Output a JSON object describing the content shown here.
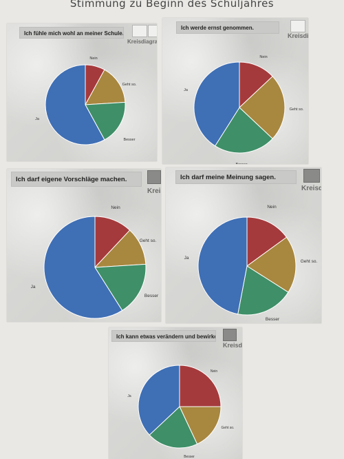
{
  "poster": {
    "title": "Stimmung zu Beginn des Schuljahres"
  },
  "widgets": {
    "diagram_label": "Kreisdiagra"
  },
  "colors": {
    "Nein": "#a53a3c",
    "Geht so.": "#a8873f",
    "Besser": "#3f8f68",
    "Ja": "#3f6fb5"
  },
  "chart_data": [
    {
      "type": "pie",
      "title": "Ich fühle mich wohl an meiner Schule.",
      "categories": [
        "Nein",
        "Geht so.",
        "Besser",
        "Ja"
      ],
      "values": [
        8,
        16,
        18,
        58
      ]
    },
    {
      "type": "pie",
      "title": "Ich werde ernst genommen.",
      "categories": [
        "Nein",
        "Geht so.",
        "Besser",
        "Ja"
      ],
      "values": [
        13,
        24,
        22,
        41
      ]
    },
    {
      "type": "pie",
      "title": "Ich darf eigene Vorschläge machen.",
      "categories": [
        "Nein",
        "Geht so.",
        "Besser",
        "Ja"
      ],
      "values": [
        12,
        12,
        17,
        59
      ]
    },
    {
      "type": "pie",
      "title": "Ich darf meine Meinung sagen.",
      "categories": [
        "Nein",
        "Geht so.",
        "Besser",
        "Ja"
      ],
      "values": [
        15,
        19,
        19,
        47
      ]
    },
    {
      "type": "pie",
      "title": "Ich kann etwas verändern und bewirken.",
      "categories": [
        "Nein",
        "Geht so.",
        "Besser",
        "Ja"
      ],
      "values": [
        25,
        18,
        20,
        37
      ]
    }
  ]
}
